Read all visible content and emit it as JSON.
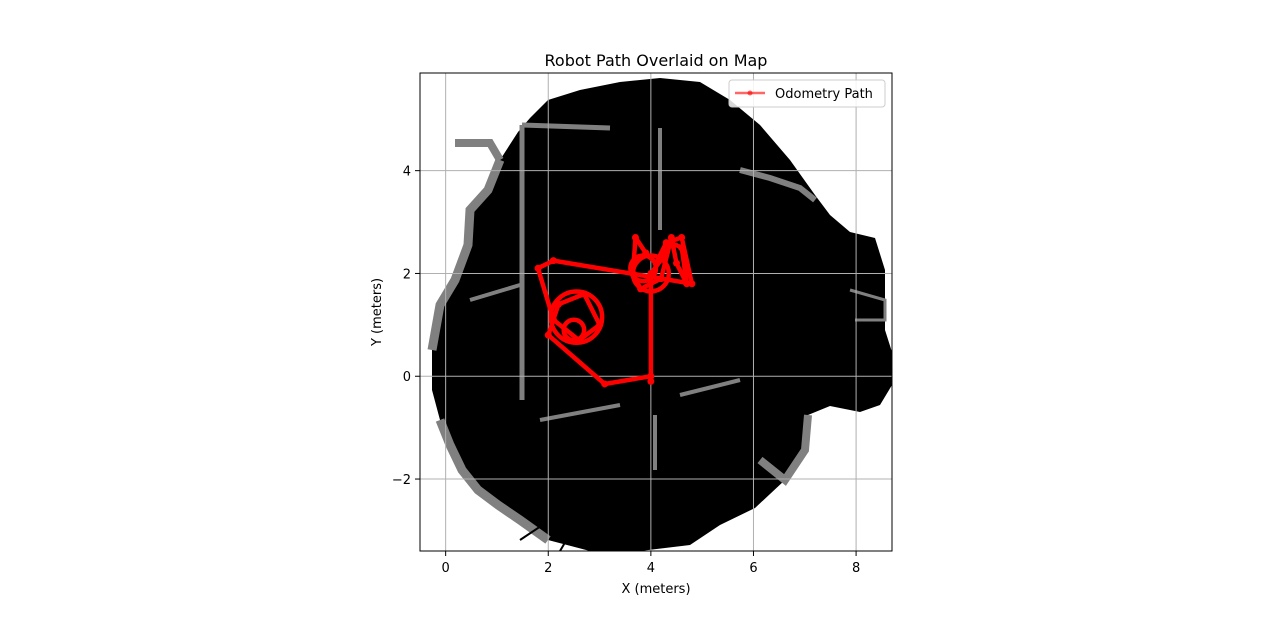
{
  "chart_data": {
    "type": "line",
    "title": "Robot Path Overlaid on Map",
    "xlabel": "X (meters)",
    "ylabel": "Y (meters)",
    "xlim": [
      -0.5,
      8.7
    ],
    "ylim": [
      -3.4,
      5.9
    ],
    "xticks": [
      0,
      2,
      4,
      6,
      8
    ],
    "yticks": [
      -2,
      0,
      2,
      4
    ],
    "tick_labels": {
      "x": [
        "0",
        "2",
        "4",
        "6",
        "8"
      ],
      "y": [
        "−2",
        "0",
        "2",
        "4"
      ]
    },
    "grid": true,
    "legend": {
      "placement": "top-right",
      "entries": [
        "Odometry Path"
      ]
    },
    "background_map": "occupancy grid (black = explored/occupied, gray = unknown edges, white = free/outside)",
    "series": [
      {
        "name": "Odometry Path",
        "color": "#ff0000",
        "marker": "circle",
        "x": [
          4.0,
          3.1,
          2.0,
          2.2,
          2.7,
          3.0,
          2.6,
          2.1,
          1.8,
          2.1,
          4.8,
          4.6,
          4.3,
          4.1,
          3.9,
          3.7,
          3.65,
          3.8,
          4.2,
          4.4,
          4.5,
          4.7,
          4.6,
          4.4,
          4.3,
          4.0,
          4.0
        ],
        "y": [
          0.0,
          -0.15,
          0.8,
          1.4,
          1.6,
          1.0,
          0.7,
          1.1,
          2.1,
          2.25,
          1.8,
          2.7,
          2.6,
          2.2,
          2.4,
          2.7,
          2.0,
          1.7,
          1.9,
          2.7,
          2.2,
          1.8,
          2.5,
          2.6,
          2.4,
          2.0,
          -0.1
        ]
      }
    ],
    "circles": [
      {
        "cx": 2.55,
        "cy": 1.15,
        "r": 0.5
      },
      {
        "cx": 2.5,
        "cy": 0.9,
        "r": 0.2
      },
      {
        "cx": 3.85,
        "cy": 2.1,
        "r": 0.25
      },
      {
        "cx": 4.0,
        "cy": 2.0,
        "r": 0.35
      }
    ]
  },
  "colors": {
    "path": "#ff0000",
    "occupied": "#000000",
    "unknown": "#808080",
    "grid": "#b0b0b0"
  }
}
